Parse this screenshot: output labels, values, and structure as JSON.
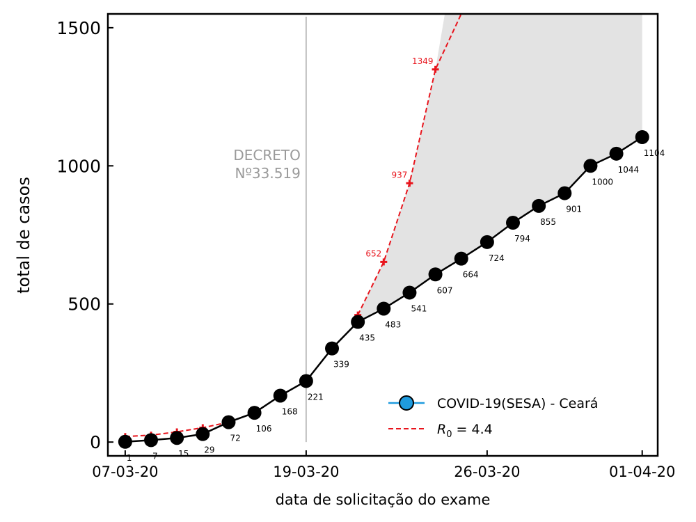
{
  "chart_data": {
    "type": "line",
    "xlabel": "data de solicitação do exame",
    "ylabel": "total de casos",
    "ylim": [
      -50,
      1550
    ],
    "xlim": [
      -0.67,
      20.6
    ],
    "x_ticks": [
      {
        "index": 0,
        "label": "07-03-20"
      },
      {
        "index": 7,
        "label": "19-03-20"
      },
      {
        "index": 14,
        "label": "26-03-20"
      },
      {
        "index": 20,
        "label": "01-04-20"
      }
    ],
    "y_ticks": [
      0,
      500,
      1000,
      1500
    ],
    "series": [
      {
        "name": "COVID-19(SESA) - Ceará",
        "color": "#000000",
        "marker_legend_color": "#1f9bde",
        "x": [
          0,
          1,
          2,
          3,
          4,
          5,
          6,
          7,
          8,
          9,
          10,
          11,
          12,
          13,
          14,
          15,
          16,
          17,
          18,
          19,
          20
        ],
        "values": [
          1,
          7,
          15,
          29,
          72,
          106,
          168,
          221,
          339,
          435,
          483,
          541,
          607,
          664,
          724,
          794,
          855,
          901,
          1000,
          1044,
          1104
        ]
      },
      {
        "name": "R0 = 4.4",
        "legend_math": "R_0 = 4.4",
        "color": "#e8141c",
        "x": [
          0,
          1,
          2,
          3,
          4
        ],
        "values": [
          20,
          25,
          37,
          52,
          72
        ]
      },
      {
        "name": "R0 = 4.4 projection",
        "color": "#e8141c",
        "x": [
          9,
          10,
          11,
          12,
          13
        ],
        "values": [
          460,
          652,
          937,
          1349,
          1900
        ],
        "labeled": [
          false,
          true,
          true,
          true,
          false
        ]
      }
    ],
    "annotation": {
      "line1": "DECRETO",
      "line2": "Nº33.519",
      "index": 7
    },
    "shading": {
      "from_index": 9,
      "to_index": 20,
      "color": "#e3e3e3"
    },
    "legend_placement": "lower-right"
  }
}
